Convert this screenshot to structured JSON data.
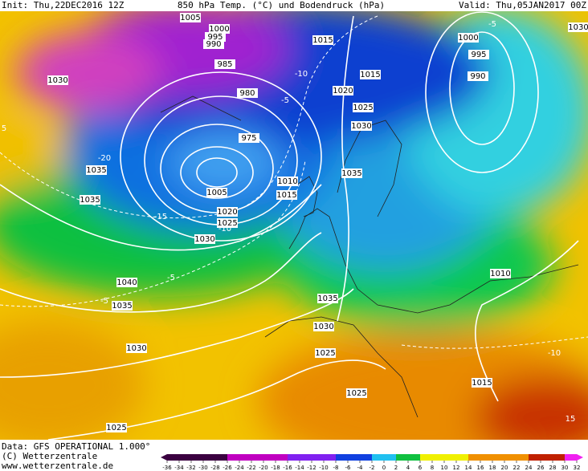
{
  "header": {
    "init": "Init: Thu,22DEC2016 12Z",
    "title": "850 hPa Temp. (°C) und Bodendruck (hPa)",
    "valid": "Valid: Thu,05JAN2017 00Z"
  },
  "isobar_labels": [
    "1005",
    "1000",
    "995",
    "990",
    "985",
    "980",
    "975",
    "1005",
    "1010",
    "1015",
    "1020",
    "1025",
    "1030",
    "1035",
    "1035",
    "1040",
    "1035",
    "1030",
    "1025",
    "1030",
    "1015",
    "1015",
    "1020",
    "1025",
    "1030",
    "1035",
    "1000",
    "995",
    "990",
    "1030",
    "1035",
    "1030",
    "1025",
    "1025",
    "1010",
    "1015"
  ],
  "isotherm_labels": [
    "-10",
    "-5",
    "-15",
    "-10",
    "-5",
    "-5",
    "-5",
    "-10",
    "15",
    "5",
    "-20"
  ],
  "footer": {
    "data": "Data: GFS OPERATIONAL 1.000°",
    "copyright": "(C) Wetterzentrale",
    "url": "www.wetterzentrale.de"
  },
  "scale": {
    "ticks": [
      -36,
      -34,
      -32,
      -30,
      -28,
      -26,
      -24,
      -22,
      -20,
      -18,
      -16,
      -14,
      -12,
      -10,
      -8,
      -6,
      -4,
      -2,
      0,
      2,
      4,
      6,
      8,
      10,
      12,
      14,
      16,
      18,
      20,
      22,
      24,
      26,
      28,
      30,
      32
    ]
  }
}
